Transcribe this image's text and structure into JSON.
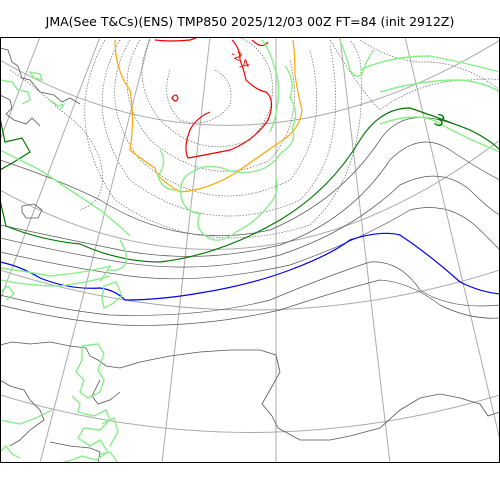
{
  "title": "JMA(See T&Cs)(ENS) TMP850 2025/12/03 00Z FT=84 (init 2912Z)",
  "contour_labels": {
    "green_3": "3",
    "red_a": "-2",
    "red_b": "-4"
  },
  "colors": {
    "graticule": "#aaaaaa",
    "coastline": "#555555",
    "contour_dotted": "#666666",
    "contour_3": "#007700",
    "contour_0": "#0000ee",
    "contour_neg1": "#ffa500",
    "contour_neg2": "#ee0000",
    "ensemble_light_green": "#88ee88"
  }
}
